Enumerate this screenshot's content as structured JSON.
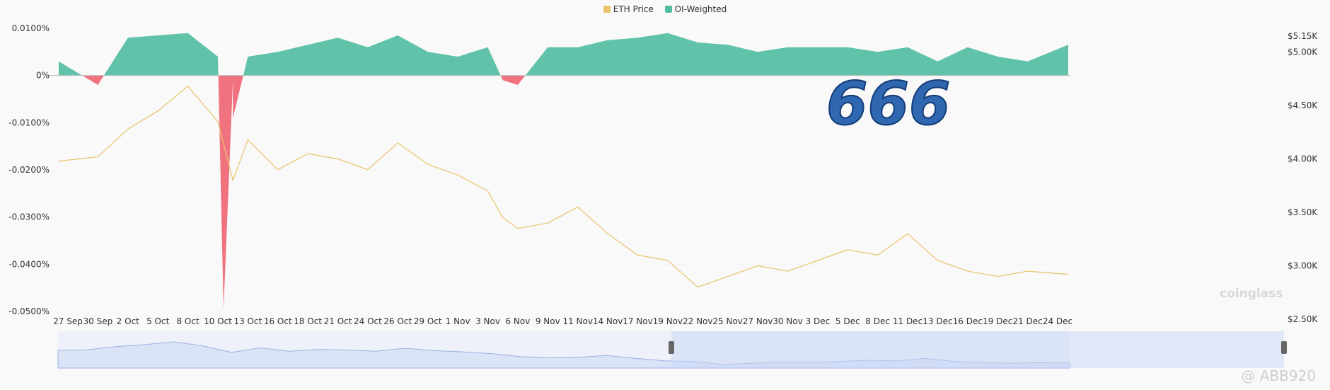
{
  "legend": {
    "eth_label": "ETH Price",
    "oi_label": "OI-Weighted"
  },
  "colors": {
    "eth": "#e9c46a",
    "oi_pos": "#4fbca0",
    "oi_neg": "#f06a78",
    "navigator_fill": "#dbe4f6",
    "navigator_line": "#9bb1e4"
  },
  "overlay": {
    "sticker_text": "666",
    "brand": "coinglass",
    "watermark": "@ ABB920"
  },
  "chart_data": {
    "type": "area",
    "series": [
      {
        "name": "OI-Weighted",
        "axis": "left",
        "unit": "%",
        "x": [
          "27 Sep",
          "30 Sep",
          "2 Oct",
          "5 Oct",
          "8 Oct",
          "10 Oct",
          "10 Oct",
          "11 Oct",
          "12 Oct",
          "13 Oct",
          "16 Oct",
          "18 Oct",
          "21 Oct",
          "24 Oct",
          "26 Oct",
          "29 Oct",
          "1 Nov",
          "3 Nov",
          "5 Nov",
          "6 Nov",
          "9 Nov",
          "11 Nov",
          "14 Nov",
          "17 Nov",
          "19 Nov",
          "22 Nov",
          "25 Nov",
          "27 Nov",
          "30 Nov",
          "3 Dec",
          "5 Dec",
          "8 Dec",
          "11 Dec",
          "13 Dec",
          "16 Dec",
          "19 Dec",
          "21 Dec",
          "24 Dec"
        ],
        "values": [
          0.003,
          -0.002,
          0.008,
          0.0085,
          0.009,
          0.004,
          -0.0495,
          -0.001,
          -0.009,
          0.004,
          0.005,
          0.0065,
          0.008,
          0.006,
          0.0085,
          0.005,
          0.004,
          0.006,
          -0.001,
          -0.002,
          0.006,
          0.006,
          0.0075,
          0.008,
          0.009,
          0.007,
          0.0065,
          0.005,
          0.006,
          0.006,
          0.006,
          0.005,
          0.006,
          0.003,
          0.006,
          0.004,
          0.003,
          0.0065
        ]
      },
      {
        "name": "ETH Price",
        "axis": "right",
        "unit": "USD",
        "x": [
          "27 Sep",
          "30 Sep",
          "2 Oct",
          "5 Oct",
          "8 Oct",
          "10 Oct",
          "11 Oct",
          "13 Oct",
          "16 Oct",
          "18 Oct",
          "21 Oct",
          "24 Oct",
          "26 Oct",
          "29 Oct",
          "1 Nov",
          "3 Nov",
          "5 Nov",
          "6 Nov",
          "9 Nov",
          "11 Nov",
          "14 Nov",
          "17 Nov",
          "19 Nov",
          "22 Nov",
          "25 Nov",
          "27 Nov",
          "30 Nov",
          "3 Dec",
          "5 Dec",
          "8 Dec",
          "11 Dec",
          "13 Dec",
          "16 Dec",
          "19 Dec",
          "21 Dec",
          "24 Dec"
        ],
        "values": [
          3980,
          4020,
          4280,
          4450,
          4680,
          4350,
          3800,
          4180,
          3900,
          4050,
          4000,
          3900,
          4150,
          3950,
          3850,
          3700,
          3450,
          3350,
          3400,
          3550,
          3300,
          3100,
          3050,
          2800,
          2900,
          3000,
          2950,
          3050,
          3150,
          3100,
          3300,
          3050,
          2950,
          2900,
          2950,
          2920
        ]
      }
    ],
    "x_ticks": [
      "27 Sep",
      "30 Sep",
      "2 Oct",
      "5 Oct",
      "8 Oct",
      "10 Oct",
      "13 Oct",
      "16 Oct",
      "18 Oct",
      "21 Oct",
      "24 Oct",
      "26 Oct",
      "29 Oct",
      "1 Nov",
      "3 Nov",
      "6 Nov",
      "9 Nov",
      "11 Nov",
      "14 Nov",
      "17 Nov",
      "19 Nov",
      "22 Nov",
      "25 Nov",
      "27 Nov",
      "30 Nov",
      "3 Dec",
      "5 Dec",
      "8 Dec",
      "11 Dec",
      "13 Dec",
      "16 Dec",
      "19 Dec",
      "21 Dec",
      "24 Dec"
    ],
    "y_left_ticks": [
      "0.0100%",
      "0%",
      "-0.0100%",
      "-0.0200%",
      "-0.0300%",
      "-0.0400%",
      "-0.0500%"
    ],
    "y_left_range": [
      -0.05,
      0.01
    ],
    "y_right_ticks": [
      "$5.15K",
      "$5.00K",
      "$4.50K",
      "$4.00K",
      "$3.50K",
      "$3.00K",
      "$2.50K"
    ],
    "y_right_range": [
      2500,
      5150
    ],
    "legend_position": "top-center",
    "grid": true
  }
}
